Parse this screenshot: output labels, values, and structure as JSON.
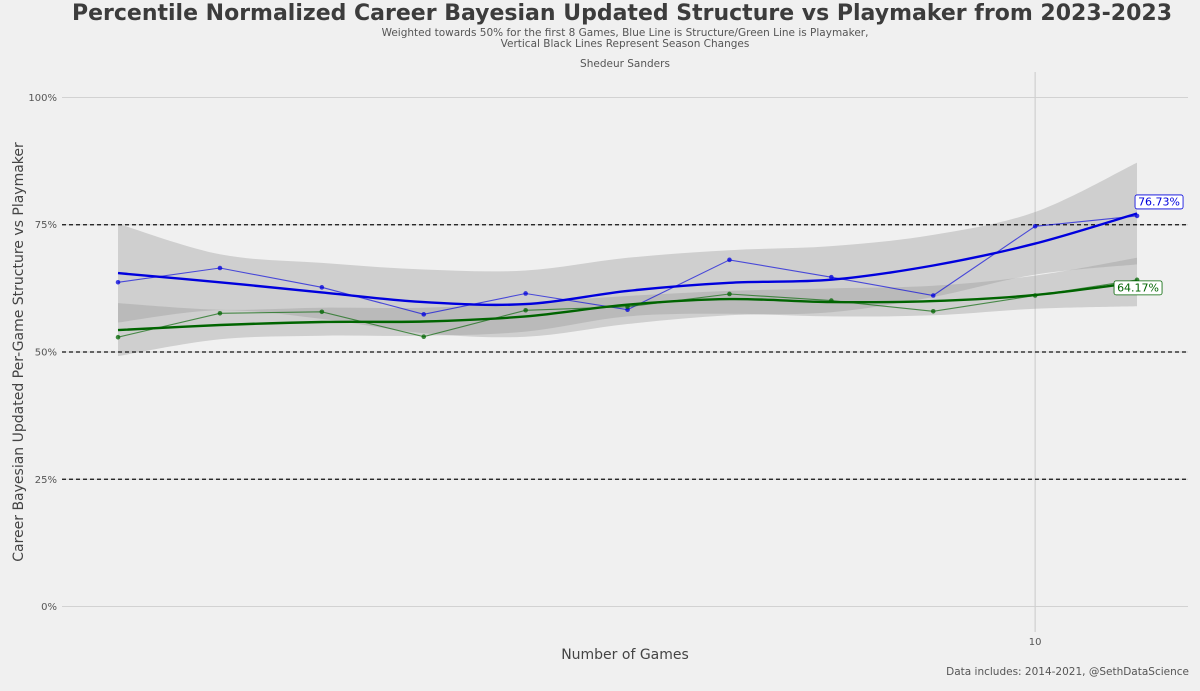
{
  "chart_data": {
    "type": "line",
    "title": "Percentile Normalized Career Bayesian Updated Structure vs Playmaker from 2023-2023",
    "subtitle_lines": [
      "Weighted towards 50% for the first 8 Games, Blue Line is Structure/Green Line is Playmaker,",
      "Vertical Black Lines Represent Season Changes"
    ],
    "player": "Shedeur Sanders",
    "xlabel": "Number of Games",
    "ylabel": "Career Bayesian Updated Per-Game Structure vs Playmaker",
    "caption": "Data includes: 2014-2021, @SethDataScience",
    "xlim": [
      0.45,
      11.5
    ],
    "ylim": [
      -0.05,
      1.05
    ],
    "x_ticks": [
      {
        "value": 10,
        "label": "10"
      }
    ],
    "y_ticks": [
      {
        "value": 0,
        "label": "0%"
      },
      {
        "value": 0.25,
        "label": "25%"
      },
      {
        "value": 0.5,
        "label": "50%"
      },
      {
        "value": 0.75,
        "label": "75%"
      },
      {
        "value": 1.0,
        "label": "100%"
      }
    ],
    "reference_lines": [
      0.25,
      0.5,
      0.75
    ],
    "season_change_x": [
      10
    ],
    "series": [
      {
        "name": "Structure",
        "color": "#0000dd",
        "x": [
          1,
          2,
          3,
          4,
          5,
          6,
          7,
          8,
          9,
          10,
          11
        ],
        "values": [
          0.637,
          0.665,
          0.627,
          0.574,
          0.615,
          0.583,
          0.681,
          0.647,
          0.611,
          0.747,
          0.7673
        ],
        "smooth": [
          0.655,
          0.637,
          0.617,
          0.598,
          0.594,
          0.62,
          0.636,
          0.642,
          0.67,
          0.713,
          0.772
        ],
        "band_upper": [
          0.752,
          0.692,
          0.675,
          0.662,
          0.66,
          0.685,
          0.7,
          0.708,
          0.73,
          0.775,
          0.872
        ],
        "band_lower": [
          0.558,
          0.582,
          0.565,
          0.537,
          0.53,
          0.555,
          0.572,
          0.578,
          0.608,
          0.652,
          0.672
        ],
        "end_label": "76.73%"
      },
      {
        "name": "Playmaker",
        "color": "#006400",
        "x": [
          1,
          2,
          3,
          4,
          5,
          6,
          7,
          8,
          9,
          10,
          11
        ],
        "values": [
          0.529,
          0.576,
          0.579,
          0.53,
          0.582,
          0.589,
          0.614,
          0.601,
          0.58,
          0.611,
          0.6417
        ],
        "smooth": [
          0.543,
          0.553,
          0.559,
          0.56,
          0.57,
          0.593,
          0.604,
          0.598,
          0.6,
          0.612,
          0.637
        ],
        "band_upper": [
          0.596,
          0.583,
          0.587,
          0.587,
          0.597,
          0.61,
          0.62,
          0.625,
          0.63,
          0.65,
          0.685
        ],
        "band_lower": [
          0.492,
          0.525,
          0.532,
          0.532,
          0.54,
          0.57,
          0.575,
          0.57,
          0.572,
          0.585,
          0.59
        ],
        "end_label": "64.17%"
      }
    ]
  }
}
